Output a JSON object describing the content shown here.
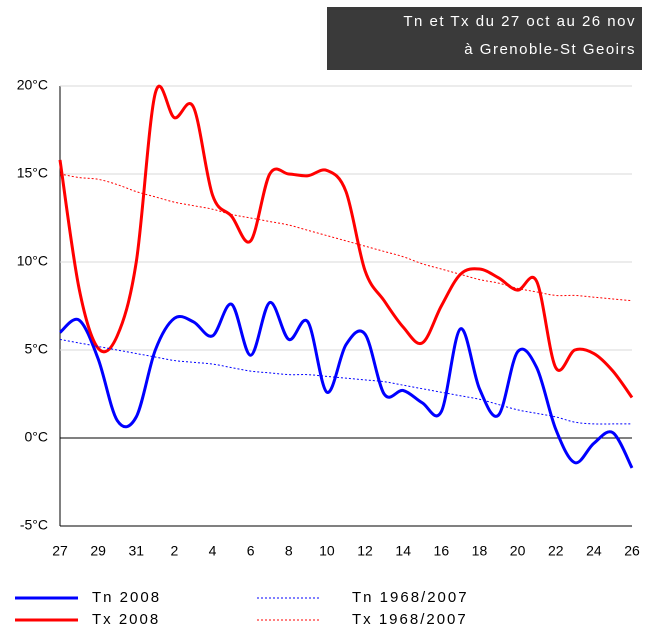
{
  "chart_data": {
    "type": "line",
    "title_lines": [
      "Tn et Tx du 27 oct au 26 nov",
      "à Grenoble-St Geoirs"
    ],
    "categories": [
      "27",
      null,
      "29",
      null,
      "31",
      null,
      "2",
      null,
      "4",
      null,
      "6",
      null,
      "8",
      null,
      "10",
      null,
      "12",
      null,
      "14",
      null,
      "16",
      null,
      "18",
      null,
      "20",
      null,
      "22",
      null,
      "24",
      null,
      "26"
    ],
    "series": [
      {
        "name": "Tn 2008",
        "color": "#0000ff",
        "style": "solid",
        "values": [
          6.0,
          6.7,
          4.5,
          1.0,
          1.2,
          5.0,
          6.8,
          6.6,
          5.8,
          7.6,
          4.7,
          7.7,
          5.6,
          6.6,
          2.6,
          5.3,
          5.9,
          2.5,
          2.7,
          2.0,
          1.5,
          6.2,
          2.8,
          1.3,
          4.9,
          4.0,
          0.5,
          -1.4,
          -0.3,
          0.3,
          -1.7
        ]
      },
      {
        "name": "Tx 2008",
        "color": "#ff0000",
        "style": "solid",
        "values": [
          15.8,
          8.5,
          5.1,
          5.8,
          10.0,
          19.6,
          18.2,
          18.8,
          13.8,
          12.6,
          11.2,
          15.0,
          15.0,
          14.9,
          15.2,
          14.0,
          9.5,
          7.8,
          6.3,
          5.4,
          7.5,
          9.3,
          9.6,
          9.1,
          8.4,
          8.9,
          4.0,
          5.0,
          4.8,
          3.8,
          2.3
        ]
      },
      {
        "name": "Tn 1968/2007",
        "color": "#0000ff",
        "style": "dotted",
        "values": [
          5.6,
          5.4,
          5.2,
          5.0,
          4.8,
          4.6,
          4.4,
          4.3,
          4.2,
          4.0,
          3.8,
          3.7,
          3.6,
          3.6,
          3.5,
          3.4,
          3.3,
          3.2,
          3.0,
          2.8,
          2.6,
          2.4,
          2.2,
          1.9,
          1.6,
          1.4,
          1.2,
          0.9,
          0.8,
          0.8,
          0.8
        ]
      },
      {
        "name": "Tx 1968/2007",
        "color": "#ff0000",
        "style": "dotted",
        "values": [
          15.0,
          14.8,
          14.7,
          14.4,
          14.0,
          13.7,
          13.4,
          13.2,
          13.0,
          12.7,
          12.5,
          12.3,
          12.1,
          11.8,
          11.5,
          11.2,
          10.9,
          10.6,
          10.3,
          9.9,
          9.6,
          9.3,
          9.0,
          8.8,
          8.5,
          8.3,
          8.1,
          8.1,
          8.0,
          7.9,
          7.8
        ]
      }
    ],
    "ylim": [
      -5,
      20
    ],
    "yticks": [
      {
        "value": -5,
        "label": "-5°C"
      },
      {
        "value": 0,
        "label": "0°C"
      },
      {
        "value": 5,
        "label": "5°C"
      },
      {
        "value": 10,
        "label": "10°C"
      },
      {
        "value": 15,
        "label": "15°C"
      },
      {
        "value": 20,
        "label": "20°C"
      }
    ],
    "grid": true
  }
}
